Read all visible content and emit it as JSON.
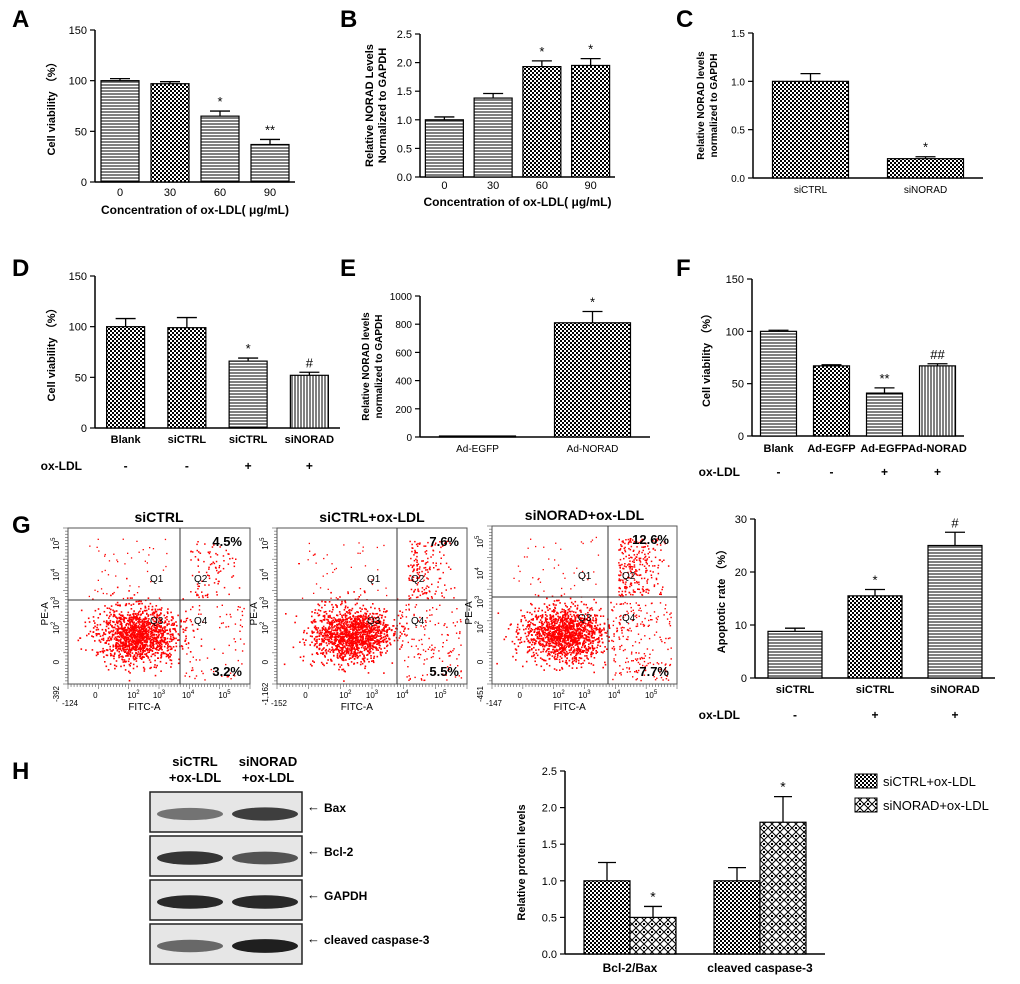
{
  "panel_letters": [
    "A",
    "B",
    "C",
    "D",
    "E",
    "F",
    "G",
    "H"
  ],
  "chart_data": [
    {
      "id": "A",
      "type": "bar",
      "ylabel": "Cell viability （%）",
      "xlabel": "Concentration of ox-LDL( μg/mL)",
      "ylim": [
        0,
        150
      ],
      "yticks": [
        0,
        50,
        100,
        150
      ],
      "categories": [
        "0",
        "30",
        "60",
        "90"
      ],
      "values": [
        100,
        97,
        65,
        37
      ],
      "errors": [
        2,
        2,
        5,
        5
      ],
      "annotations": [
        "",
        "",
        "*",
        "**"
      ],
      "patterns": [
        "hlines",
        "checker",
        "hlines",
        "hlines"
      ]
    },
    {
      "id": "B",
      "type": "bar",
      "ylabel": "Relative NORAD Levels Normalized to GAPDH",
      "xlabel": "Concentration of ox-LDL( μg/mL)",
      "ylim": [
        0,
        2.5
      ],
      "yticks": [
        0.0,
        0.5,
        1.0,
        1.5,
        2.0,
        2.5
      ],
      "categories": [
        "0",
        "30",
        "60",
        "90"
      ],
      "values": [
        1.0,
        1.38,
        1.93,
        1.95
      ],
      "errors": [
        0.05,
        0.08,
        0.1,
        0.12
      ],
      "annotations": [
        "",
        "",
        "*",
        "*"
      ],
      "patterns": [
        "hlines",
        "hlines",
        "checker",
        "checker"
      ]
    },
    {
      "id": "C",
      "type": "bar",
      "ylabel": "Relative NORAD levels normalized to GAPDH",
      "xlabel": "",
      "ylim": [
        0,
        1.5
      ],
      "yticks": [
        0.0,
        0.5,
        1.0,
        1.5
      ],
      "categories": [
        "siCTRL",
        "siNORAD"
      ],
      "values": [
        1.0,
        0.2
      ],
      "errors": [
        0.08,
        0.02
      ],
      "annotations": [
        "",
        "*"
      ],
      "patterns": [
        "checker",
        "checker"
      ]
    },
    {
      "id": "D",
      "type": "bar",
      "ylabel": "Cell viability （%）",
      "xlabel": "",
      "ylim": [
        0,
        150
      ],
      "yticks": [
        0,
        50,
        100,
        150
      ],
      "categories": [
        "Blank",
        "siCTRL",
        "siCTRL",
        "siNORAD"
      ],
      "values": [
        100,
        99,
        66,
        52
      ],
      "errors": [
        8,
        10,
        3,
        3
      ],
      "annotations": [
        "",
        "",
        "*",
        "#"
      ],
      "patterns": [
        "checker",
        "checker",
        "hlines",
        "vlines"
      ],
      "treatment_label": "ox-LDL",
      "treatment": [
        "-",
        "-",
        "+",
        "+"
      ]
    },
    {
      "id": "E",
      "type": "bar",
      "ylabel": "Relative NORAD levels normalized to GAPDH",
      "xlabel": "",
      "ylim": [
        0,
        1000
      ],
      "yticks": [
        0,
        200,
        400,
        600,
        800,
        1000
      ],
      "categories": [
        "Ad-EGFP",
        "Ad-NORAD"
      ],
      "values": [
        1,
        810
      ],
      "errors": [
        0,
        80
      ],
      "annotations": [
        "",
        "*"
      ],
      "patterns": [
        "checker",
        "checker"
      ]
    },
    {
      "id": "F",
      "type": "bar",
      "ylabel": "Cell viability （%）",
      "xlabel": "",
      "ylim": [
        0,
        150
      ],
      "yticks": [
        0,
        50,
        100,
        150
      ],
      "categories": [
        "Blank",
        "Ad-EGFP",
        "Ad-EGFP",
        "Ad-NORAD"
      ],
      "values": [
        100,
        67,
        41,
        67
      ],
      "errors": [
        1,
        1,
        5,
        2
      ],
      "annotations": [
        "",
        "",
        "**",
        "##"
      ],
      "patterns": [
        "hlines",
        "checker",
        "hlines",
        "vlines"
      ],
      "treatment_label": "ox-LDL",
      "treatment": [
        "-",
        "-",
        "+",
        "+"
      ]
    },
    {
      "id": "G-bar",
      "type": "bar",
      "ylabel": "Apoptotic rate （%）",
      "xlabel": "",
      "ylim": [
        0,
        30
      ],
      "yticks": [
        0,
        10,
        20,
        30
      ],
      "categories": [
        "siCTRL",
        "siCTRL",
        "siNORAD"
      ],
      "values": [
        8.8,
        15.5,
        25
      ],
      "errors": [
        0.6,
        1.2,
        2.5
      ],
      "annotations": [
        "",
        "*",
        "#"
      ],
      "patterns": [
        "hlines",
        "checker",
        "hlines"
      ],
      "treatment_label": "ox-LDL",
      "treatment": [
        "-",
        "+",
        "+"
      ]
    },
    {
      "id": "H-bar",
      "type": "bar",
      "ylabel": "Relative protein levels",
      "xlabel": "",
      "ylim": [
        0,
        2.5
      ],
      "yticks": [
        0.0,
        0.5,
        1.0,
        1.5,
        2.0,
        2.5
      ],
      "categories": [
        "Bcl-2/Bax",
        "cleaved caspase-3"
      ],
      "series": [
        {
          "name": "siCTRL+ox-LDL",
          "values": [
            1.0,
            1.0
          ],
          "errors": [
            0.25,
            0.18
          ],
          "annotations": [
            "",
            ""
          ],
          "pattern": "checker"
        },
        {
          "name": "siNORAD+ox-LDL",
          "values": [
            0.5,
            1.8
          ],
          "errors": [
            0.15,
            0.35
          ],
          "annotations": [
            "*",
            "*"
          ],
          "pattern": "diamond"
        }
      ],
      "legend_position": "right"
    }
  ],
  "flow_cytometry": [
    {
      "title": "siCTRL",
      "q2": "4.5%",
      "q4": "3.2%",
      "ymin_label": "-392",
      "xmin_label": "-124"
    },
    {
      "title": "siCTRL+ox-LDL",
      "q2": "7.6%",
      "q4": "5.5%",
      "ymin_label": "-1,162",
      "xmin_label": "-152"
    },
    {
      "title": "siNORAD+ox-LDL",
      "q2": "12.6%",
      "q4": "7.7%",
      "ymin_label": "-451",
      "xmin_label": "-147"
    }
  ],
  "flow_axes": {
    "x_axis_label": "FITC-A",
    "y_axis_label": "PE-A",
    "quadrant_labels": [
      "Q1",
      "Q2",
      "Q3",
      "Q4"
    ],
    "tick_labels": [
      "0",
      "10",
      "10",
      "10",
      "10"
    ],
    "exponents": [
      "2",
      "3",
      "4",
      "5"
    ]
  },
  "western_blot": {
    "lane_labels": [
      "siCTRL\n+ox-LDL",
      "siNORAD\n+ox-LDL"
    ],
    "lane_label_lines": [
      [
        "siCTRL",
        "+ox-LDL"
      ],
      [
        "siNORAD",
        "+ox-LDL"
      ]
    ],
    "bands": [
      "Bax",
      "Bcl-2",
      "GAPDH",
      "cleaved caspase-3"
    ]
  }
}
